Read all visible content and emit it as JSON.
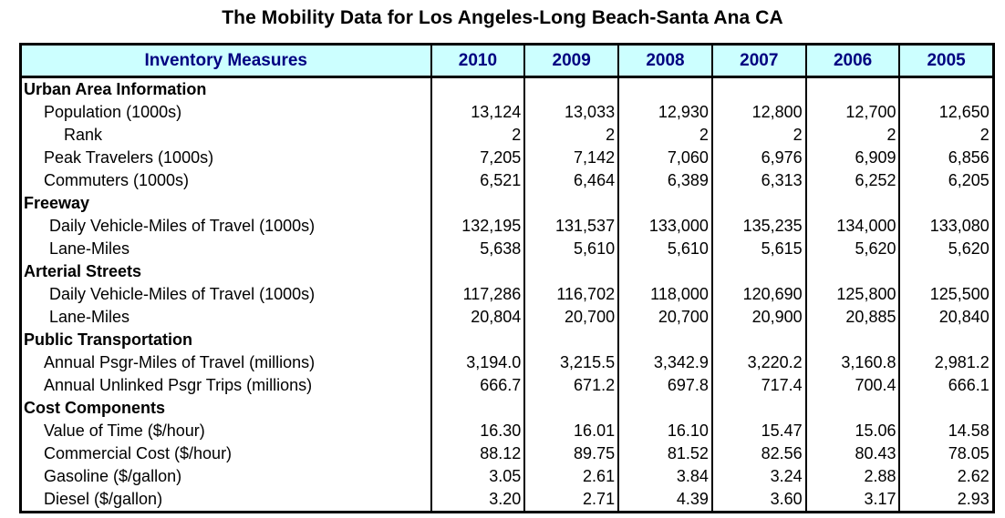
{
  "title": "The Mobility Data for Los Angeles-Long Beach-Santa Ana CA",
  "chart_data": {
    "type": "table",
    "title": "The Mobility Data for Los Angeles-Long Beach-Santa Ana CA",
    "header": {
      "label": "Inventory Measures",
      "years": [
        "2010",
        "2009",
        "2008",
        "2007",
        "2006",
        "2005"
      ]
    },
    "rows": [
      {
        "kind": "section",
        "label": "Urban Area Information",
        "values": []
      },
      {
        "kind": "sub",
        "label": "Population (1000s)",
        "values": [
          "13,124",
          "13,033",
          "12,930",
          "12,800",
          "12,700",
          "12,650"
        ]
      },
      {
        "kind": "subsub",
        "label": "Rank",
        "values": [
          "2",
          "2",
          "2",
          "2",
          "2",
          "2"
        ]
      },
      {
        "kind": "sub",
        "label": "Peak Travelers (1000s)",
        "values": [
          "7,205",
          "7,142",
          "7,060",
          "6,976",
          "6,909",
          "6,856"
        ]
      },
      {
        "kind": "sub",
        "label": "Commuters (1000s)",
        "values": [
          "6,521",
          "6,464",
          "6,389",
          "6,313",
          "6,252",
          "6,205"
        ]
      },
      {
        "kind": "section",
        "label": "Freeway",
        "values": []
      },
      {
        "kind": "sub2",
        "label": "Daily Vehicle-Miles of Travel (1000s)",
        "values": [
          "132,195",
          "131,537",
          "133,000",
          "135,235",
          "134,000",
          "133,080"
        ]
      },
      {
        "kind": "sub2",
        "label": "Lane-Miles",
        "values": [
          "5,638",
          "5,610",
          "5,610",
          "5,615",
          "5,620",
          "5,620"
        ]
      },
      {
        "kind": "section",
        "label": "Arterial Streets",
        "values": []
      },
      {
        "kind": "sub2",
        "label": "Daily Vehicle-Miles of Travel (1000s)",
        "values": [
          "117,286",
          "116,702",
          "118,000",
          "120,690",
          "125,800",
          "125,500"
        ]
      },
      {
        "kind": "sub2",
        "label": "Lane-Miles",
        "values": [
          "20,804",
          "20,700",
          "20,700",
          "20,900",
          "20,885",
          "20,840"
        ]
      },
      {
        "kind": "section",
        "label": "Public Transportation",
        "values": []
      },
      {
        "kind": "sub",
        "label": "Annual Psgr-Miles of Travel (millions)",
        "values": [
          "3,194.0",
          "3,215.5",
          "3,342.9",
          "3,220.2",
          "3,160.8",
          "2,981.2"
        ]
      },
      {
        "kind": "sub",
        "label": "Annual Unlinked Psgr Trips (millions)",
        "values": [
          "666.7",
          "671.2",
          "697.8",
          "717.4",
          "700.4",
          "666.1"
        ]
      },
      {
        "kind": "section",
        "label": "Cost Components",
        "values": []
      },
      {
        "kind": "sub",
        "label": "Value of Time ($/hour)",
        "values": [
          "16.30",
          "16.01",
          "16.10",
          "15.47",
          "15.06",
          "14.58"
        ]
      },
      {
        "kind": "sub",
        "label": "Commercial Cost ($/hour)",
        "values": [
          "88.12",
          "89.75",
          "81.52",
          "82.56",
          "80.43",
          "78.05"
        ]
      },
      {
        "kind": "sub",
        "label": "Gasoline ($/gallon)",
        "values": [
          "3.05",
          "2.61",
          "3.84",
          "3.24",
          "2.88",
          "2.62"
        ]
      },
      {
        "kind": "sub",
        "label": "Diesel ($/gallon)",
        "values": [
          "3.20",
          "2.71",
          "4.39",
          "3.60",
          "3.17",
          "2.93"
        ]
      }
    ]
  },
  "colors": {
    "header_background": "#ccffff",
    "header_text": "#000080",
    "border": "#000000"
  }
}
